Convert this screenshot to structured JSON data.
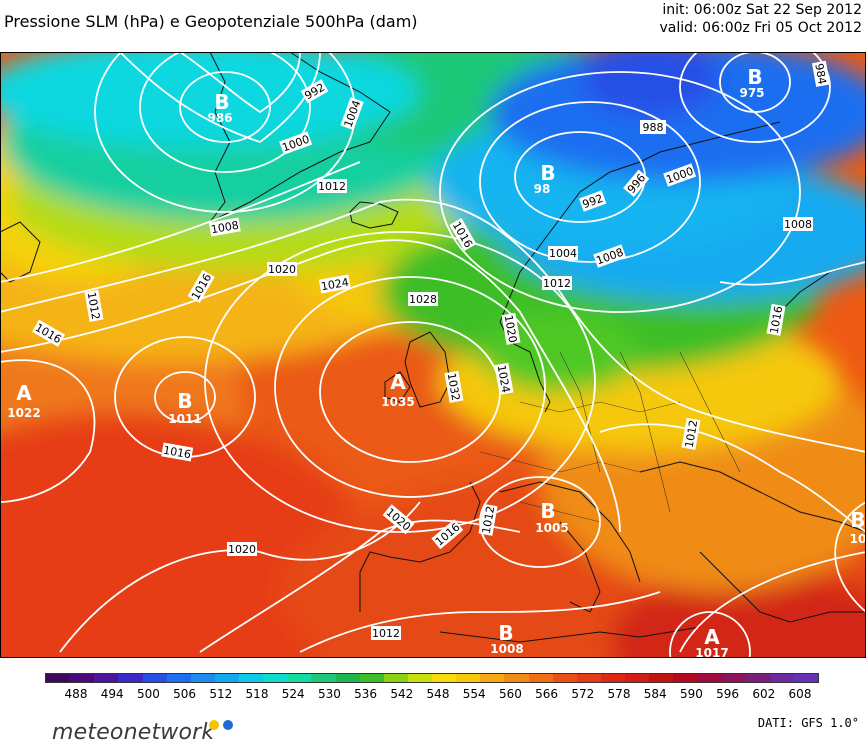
{
  "title": "Pressione SLM (hPa) e Geopotenziale 500hPa (dam)",
  "run": {
    "init": "init: 06:00z Sat 22 Sep 2012",
    "valid": "valid: 06:00z Fri 05 Oct 2012"
  },
  "colorbar": {
    "colors": [
      "#3c0a5a",
      "#4a0a78",
      "#4d14a0",
      "#3a28c8",
      "#2850e6",
      "#1e6ef0",
      "#1e8cf0",
      "#14aaf0",
      "#10c8e8",
      "#10dccc",
      "#14dca0",
      "#1ec878",
      "#1eb450",
      "#3cbe28",
      "#8cd214",
      "#c8e10a",
      "#f5dc0a",
      "#f5c80a",
      "#f5aa14",
      "#f08c14",
      "#f06e14",
      "#eb5014",
      "#e63c14",
      "#dc2814",
      "#d21e14",
      "#c3140f",
      "#b40a1e",
      "#a00a3c",
      "#8c145a",
      "#781e78",
      "#6e28a0",
      "#6432b4"
    ],
    "ticks": [
      "488",
      "494",
      "500",
      "506",
      "512",
      "518",
      "524",
      "530",
      "536",
      "542",
      "548",
      "554",
      "560",
      "566",
      "572",
      "578",
      "584",
      "590",
      "596",
      "602",
      "608"
    ]
  },
  "centers": [
    {
      "letter": "B",
      "value": "986"
    },
    {
      "letter": "B",
      "value": "98"
    },
    {
      "letter": "B",
      "value": "975"
    },
    {
      "letter": "A",
      "value": "1022"
    },
    {
      "letter": "B",
      "value": "1011"
    },
    {
      "letter": "A",
      "value": "1035"
    },
    {
      "letter": "B",
      "value": "1005"
    },
    {
      "letter": "B",
      "value": "1008"
    },
    {
      "letter": "A",
      "value": "1017"
    },
    {
      "letter": "B",
      "value": "10"
    }
  ],
  "isobar_labels": [
    "992",
    "1004",
    "1000",
    "1012",
    "1008",
    "1016",
    "1012",
    "1016",
    "1020",
    "1024",
    "1028",
    "1016",
    "1032",
    "1020",
    "1024",
    "988",
    "996",
    "1000",
    "992",
    "984",
    "1004",
    "1008",
    "1012",
    "1008",
    "1016",
    "1012",
    "1016",
    "1020",
    "1016",
    "1020",
    "1012",
    "1012"
  ],
  "brand": {
    "name": "meteonetwork",
    "dot1_color": "#f5c400",
    "dot2_color": "#1f6bd6"
  },
  "source": "DATI: GFS 1.0°"
}
